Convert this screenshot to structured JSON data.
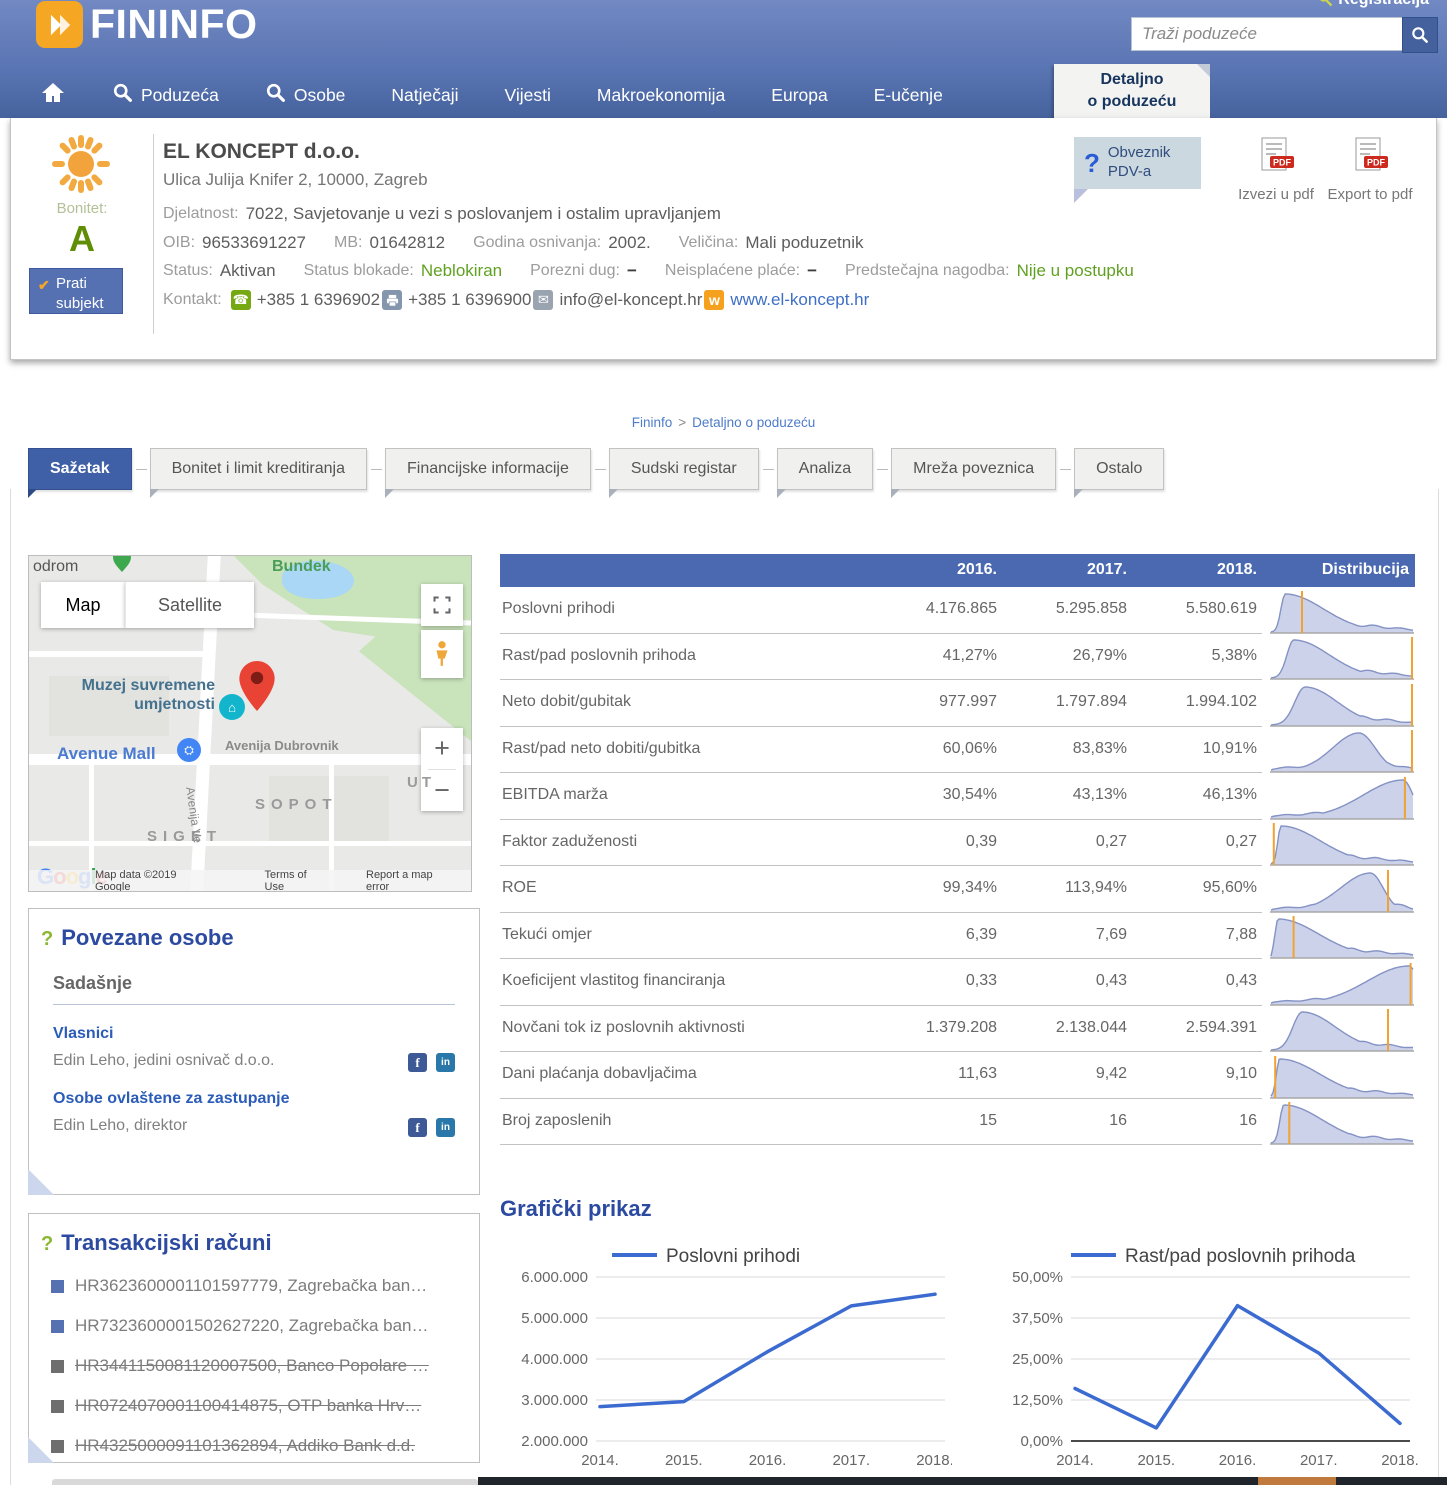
{
  "topbar": {
    "registration": "Registracija"
  },
  "header": {
    "logo": "FININFO",
    "search": {
      "placeholder": "Traži poduzeće"
    },
    "nav": [
      {
        "label": "",
        "icon": "home"
      },
      {
        "label": "Poduzeća",
        "icon": "search"
      },
      {
        "label": "Osobe",
        "icon": "search"
      },
      {
        "label": "Natječaji"
      },
      {
        "label": "Vijesti"
      },
      {
        "label": "Makroekonomija"
      },
      {
        "label": "Europa"
      },
      {
        "label": "E-učenje"
      }
    ],
    "active_tab_line1": "Detaljno",
    "active_tab_line2": "o poduzeću"
  },
  "company": {
    "name": "EL KONCEPT d.o.o.",
    "address": "Ulica Julija Knifer 2, 10000, Zagreb",
    "bonitet_label": "Bonitet:",
    "bonitet_grade": "A",
    "follow_button": "Prati subjekt",
    "djelatnost_label": "Djelatnost:",
    "djelatnost": "7022, Savjetovanje u vezi s poslovanjem i ostalim upravljanjem",
    "oib_label": "OIB:",
    "oib": "96533691227",
    "mb_label": "MB:",
    "mb": "01642812",
    "godina_label": "Godina osnivanja:",
    "godina": "2002.",
    "velicina_label": "Veličina:",
    "velicina": "Mali poduzetnik",
    "status_label": "Status:",
    "status": "Aktivan",
    "blokada_label": "Status blokade:",
    "blokada": "Neblokiran",
    "porezni_label": "Porezni dug:",
    "porezni": "−",
    "place_label": "Neisplaćene plaće:",
    "place": "−",
    "nagodba_label": "Predstečajna nagodba:",
    "nagodba": "Nije u postupku",
    "kontakt_label": "Kontakt:",
    "phone": "+385 1 6396902",
    "fax": "+385 1 6396900",
    "email": "info@el-koncept.hr",
    "web": "www.el-koncept.hr",
    "pdv_badge": "Obveznik PDV-a",
    "export_hr": "Izvezi u pdf",
    "export_en": "Export to pdf"
  },
  "breadcrumb": {
    "home": "Fininfo",
    "separator": ">",
    "current": "Detaljno o poduzeću"
  },
  "tabs": [
    {
      "label": "Sažetak",
      "active": true
    },
    {
      "label": "Bonitet i limit kreditiranja"
    },
    {
      "label": "Financijske informacije"
    },
    {
      "label": "Sudski registar"
    },
    {
      "label": "Analiza"
    },
    {
      "label": "Mreža poveznica"
    },
    {
      "label": "Ostalo"
    }
  ],
  "map": {
    "buttons": {
      "map": "Map",
      "satellite": "Satellite"
    },
    "labels": {
      "hippodrome_partial": "odrom",
      "bundek": "Bundek",
      "museum_line1": "Muzej suvremene",
      "museum_line2": "umjetnosti",
      "mall": "Avenue Mall",
      "avenue": "Avenija Dubrovnik",
      "street_vertical": "Avenija Ve",
      "sopot": "SOPOT",
      "siget": "SIGET",
      "ut_partial": "UT"
    },
    "google": "Google",
    "attribution": {
      "map_data": "Map data ©2019 Google",
      "terms": "Terms of Use",
      "report": "Report a map error"
    }
  },
  "related": {
    "title": "Povezane osobe",
    "subtitle": "Sadašnje",
    "groups": [
      {
        "heading": "Vlasnici",
        "line": "Edin Leho, jedini osnivač d.o.o."
      },
      {
        "heading": "Osobe ovlaštene za zastupanje",
        "line": "Edin Leho, direktor"
      }
    ]
  },
  "accounts": {
    "title": "Transakcijski računi",
    "items": [
      {
        "text": "HR3623600001101597779, Zagrebačka ban…",
        "active": true
      },
      {
        "text": "HR7323600001502627220, Zagrebačka ban…",
        "active": true
      },
      {
        "text": "HR3441150081120007500, Banco Popolare …",
        "active": false
      },
      {
        "text": "HR0724070001100414875, OTP banka Hrv…",
        "active": false
      },
      {
        "text": "HR4325000091101362894, Addiko Bank d.d.",
        "active": false
      }
    ]
  },
  "metrics": {
    "columns": [
      "2016.",
      "2017.",
      "2018.",
      "Distribucija"
    ],
    "rows": [
      {
        "label": "Poslovni prihodi",
        "values": [
          "4.176.865",
          "5.295.858",
          "5.580.619"
        ],
        "spark": {
          "peak": 0.1,
          "marker": 0.22
        }
      },
      {
        "label": "Rast/pad poslovnih prihoda",
        "values": [
          "41,27%",
          "26,79%",
          "5,38%"
        ],
        "spark": {
          "peak": 0.16,
          "marker": 1.0
        }
      },
      {
        "label": "Neto dobit/gubitak",
        "values": [
          "977.997",
          "1.797.894",
          "1.994.102"
        ],
        "spark": {
          "peak": 0.24,
          "marker": 1.0
        }
      },
      {
        "label": "Rast/pad neto dobiti/gubitka",
        "values": [
          "60,06%",
          "83,83%",
          "10,91%"
        ],
        "spark": {
          "peak": 0.62,
          "marker": 1.0
        }
      },
      {
        "label": "EBITDA marža",
        "values": [
          "30,54%",
          "43,13%",
          "46,13%"
        ],
        "spark": {
          "peak": 0.93,
          "marker": 0.95
        }
      },
      {
        "label": "Faktor zaduženosti",
        "values": [
          "0,39",
          "0,27",
          "0,27"
        ],
        "spark": {
          "peak": 0.07,
          "marker": 0.02
        }
      },
      {
        "label": "ROE",
        "values": [
          "99,34%",
          "113,94%",
          "95,60%"
        ],
        "spark": {
          "peak": 0.7,
          "marker": 0.83
        }
      },
      {
        "label": "Tekući omjer",
        "values": [
          "6,39",
          "7,69",
          "7,88"
        ],
        "spark": {
          "peak": 0.05,
          "marker": 0.16
        }
      },
      {
        "label": "Koeficijent vlastitog financiranja",
        "values": [
          "0,33",
          "0,43",
          "0,43"
        ],
        "spark": {
          "peak": 0.97,
          "marker": 0.99
        }
      },
      {
        "label": "Novčani tok iz poslovnih aktivnosti",
        "values": [
          "1.379.208",
          "2.138.044",
          "2.594.391"
        ],
        "spark": {
          "peak": 0.22,
          "marker": 0.83
        }
      },
      {
        "label": "Dani plaćanja dobavljačima",
        "values": [
          "11,63",
          "9,42",
          "9,10"
        ],
        "spark": {
          "peak": 0.06,
          "marker": 0.03
        }
      },
      {
        "label": "Broj zaposlenih",
        "values": [
          "15",
          "16",
          "16"
        ],
        "spark": {
          "peak": 0.09,
          "marker": 0.13
        }
      }
    ]
  },
  "charts_heading": "Grafički prikaz",
  "chart_data": [
    {
      "type": "line",
      "legend": "Poslovni prihodi",
      "x": [
        "2014.",
        "2015.",
        "2016.",
        "2017.",
        "2018."
      ],
      "values": [
        2840000,
        2960000,
        4176865,
        5295858,
        5580619
      ],
      "ylim": [
        2000000,
        6000000
      ],
      "y_ticks_top_down": [
        "6.000.000",
        "5.000.000",
        "4.000.000",
        "3.000.000",
        "2.000.000"
      ],
      "grid": true,
      "legend_position": "top",
      "zero_line": false
    },
    {
      "type": "line",
      "legend": "Rast/pad poslovnih prihoda",
      "x": [
        "2014.",
        "2015.",
        "2016.",
        "2017.",
        "2018."
      ],
      "values": [
        16.0,
        4.0,
        41.27,
        26.79,
        5.38
      ],
      "ylim": [
        0,
        50
      ],
      "y_ticks_top_down": [
        "50,00%",
        "37,50%",
        "25,00%",
        "12,50%",
        "0,00%"
      ],
      "grid": true,
      "legend_position": "top",
      "zero_line": true
    }
  ],
  "colors": {
    "accent_blue": "#4a69b0",
    "link_blue": "#2f63c0",
    "status_green": "#61a121",
    "logo_orange": "#f5a623",
    "spark_fill": "#ccd2e9",
    "spark_stroke": "#8492c4",
    "spark_marker": "#f0a232",
    "chart_line": "#3b6bd0",
    "grid_gray": "#d8d8d8"
  }
}
